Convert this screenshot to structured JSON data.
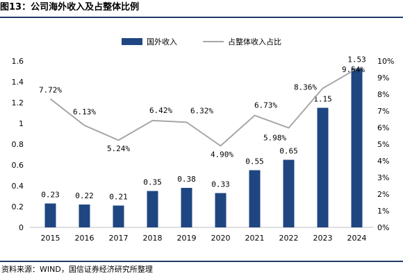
{
  "figure": {
    "title": "图13：公司海外收入及占整体比例",
    "source": "资料来源：WIND，国信证券经济研究所整理"
  },
  "chart_data": {
    "type": "bar",
    "title": "",
    "categories": [
      "2015",
      "2016",
      "2017",
      "2018",
      "2019",
      "2020",
      "2021",
      "2022",
      "2023",
      "2024"
    ],
    "series": [
      {
        "name": "国外收入",
        "type": "bar",
        "axis": "left",
        "color": "#1f4680",
        "values": [
          0.23,
          0.22,
          0.21,
          0.35,
          0.38,
          0.33,
          0.55,
          0.65,
          1.15,
          1.53
        ],
        "labels": [
          "0.23",
          "0.22",
          "0.21",
          "0.35",
          "0.38",
          "0.33",
          "0.55",
          "0.65",
          "1.15",
          "1.53"
        ]
      },
      {
        "name": "占整体收入占比",
        "type": "line",
        "axis": "right",
        "color": "#a6a6a6",
        "values": [
          7.72,
          6.13,
          5.24,
          6.42,
          6.32,
          4.9,
          6.73,
          5.98,
          8.36,
          9.54
        ],
        "labels": [
          "7.72%",
          "6.13%",
          "5.24%",
          "6.42%",
          "6.32%",
          "4.90%",
          "6.73%",
          "5.98%",
          "8.36%",
          "9.54%"
        ]
      }
    ],
    "y_left": {
      "ylim": [
        0,
        1.6
      ],
      "ticks": [
        "0",
        "0.2",
        "0.4",
        "0.6",
        "0.8",
        "1",
        "1.2",
        "1.4",
        "1.6"
      ]
    },
    "y_right": {
      "ylim": [
        0,
        10
      ],
      "ticks": [
        "0%",
        "1%",
        "2%",
        "3%",
        "4%",
        "5%",
        "6%",
        "7%",
        "8%",
        "9%",
        "10%"
      ]
    },
    "grid": false,
    "legend": "top-center"
  }
}
